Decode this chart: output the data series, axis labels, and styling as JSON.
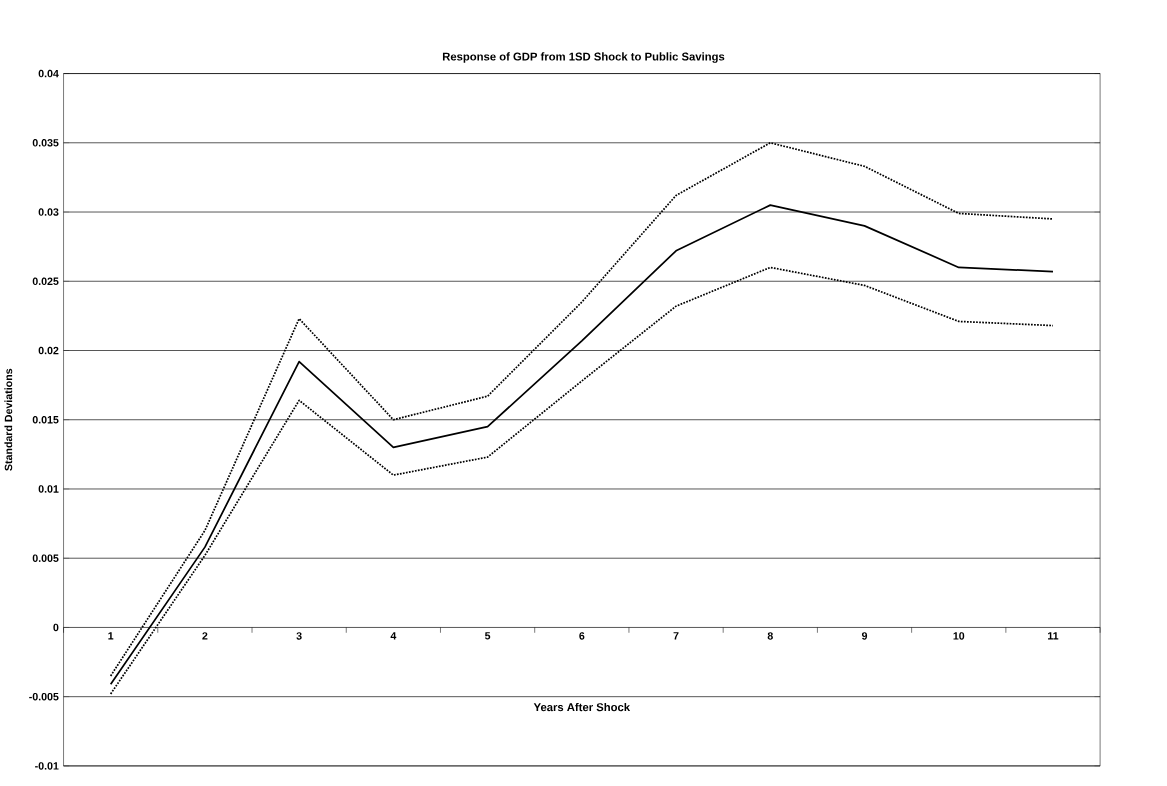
{
  "chart_data": {
    "type": "line",
    "title": "Response of GDP from 1SD Shock to Public Savings",
    "xlabel": "Years After Shock",
    "ylabel": "Standard Deviations",
    "categories": [
      "1",
      "2",
      "3",
      "4",
      "5",
      "6",
      "7",
      "8",
      "9",
      "10",
      "11"
    ],
    "series": [
      {
        "color": "#000000",
        "line_style": "solid",
        "values": [
          -0.0041,
          0.0058,
          0.0192,
          0.013,
          0.0145,
          0.0207,
          0.0272,
          0.0305,
          0.029,
          0.026,
          0.0257
        ]
      },
      {
        "color": "#000000",
        "line_style": "dotted",
        "values": [
          -0.0035,
          0.007,
          0.0223,
          0.015,
          0.0167,
          0.0235,
          0.0312,
          0.035,
          0.0333,
          0.0299,
          0.0295
        ]
      },
      {
        "color": "#000000",
        "line_style": "dotted",
        "values": [
          -0.0048,
          0.0052,
          0.0164,
          0.011,
          0.0123,
          0.0178,
          0.0232,
          0.026,
          0.0247,
          0.0221,
          0.0218
        ]
      }
    ],
    "ylim": [
      -0.01,
      0.04
    ],
    "yticks": [
      -0.01,
      -0.005,
      0,
      0.005,
      0.01,
      0.015,
      0.02,
      0.025,
      0.03,
      0.035,
      0.04
    ],
    "grid": "y"
  }
}
